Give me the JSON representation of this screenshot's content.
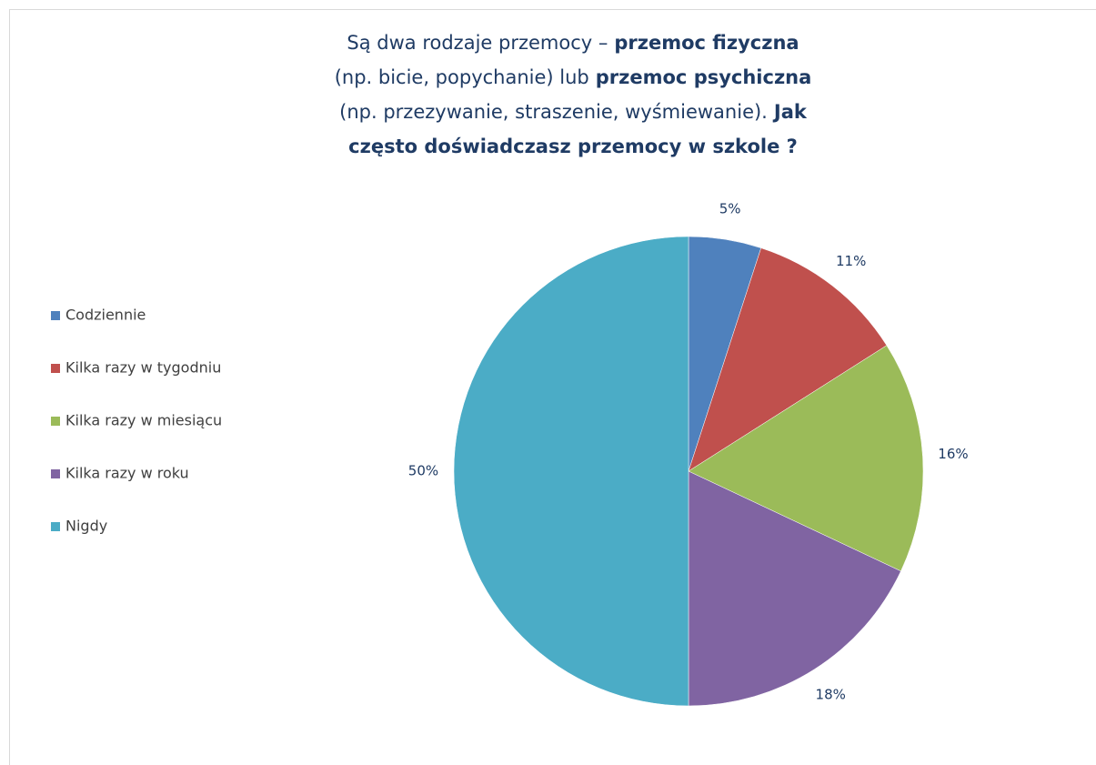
{
  "chart_data": {
    "type": "pie",
    "title_lines": [
      [
        {
          "text": "Są dwa rodzaje przemocy –",
          "bold": false
        },
        {
          "text": "przemoc fizyczna",
          "bold": true
        }
      ],
      [
        {
          "text": "(np. bicie, popychanie) lub",
          "bold": false
        },
        {
          "text": "przemoc psychiczna",
          "bold": true
        }
      ],
      [
        {
          "text": "(np. przezywanie, straszenie, wyśmiewanie).",
          "bold": false
        },
        {
          "text": "Jak",
          "bold": true
        }
      ],
      [
        {
          "text": "często doświadczasz przemocy w szkole ?",
          "bold": true
        }
      ]
    ],
    "categories": [
      "Codziennie",
      "Kilka razy w tygodniu",
      "Kilka razy w miesiącu",
      "Kilka razy w roku",
      "Nigdy"
    ],
    "values": [
      5,
      11,
      16,
      18,
      50
    ],
    "value_labels": [
      "5%",
      "11%",
      "16%",
      "18%",
      "50%"
    ],
    "colors": [
      "#4f81bd",
      "#c0504d",
      "#9bbb59",
      "#8064a2",
      "#4bacc6"
    ],
    "legend": "left"
  }
}
